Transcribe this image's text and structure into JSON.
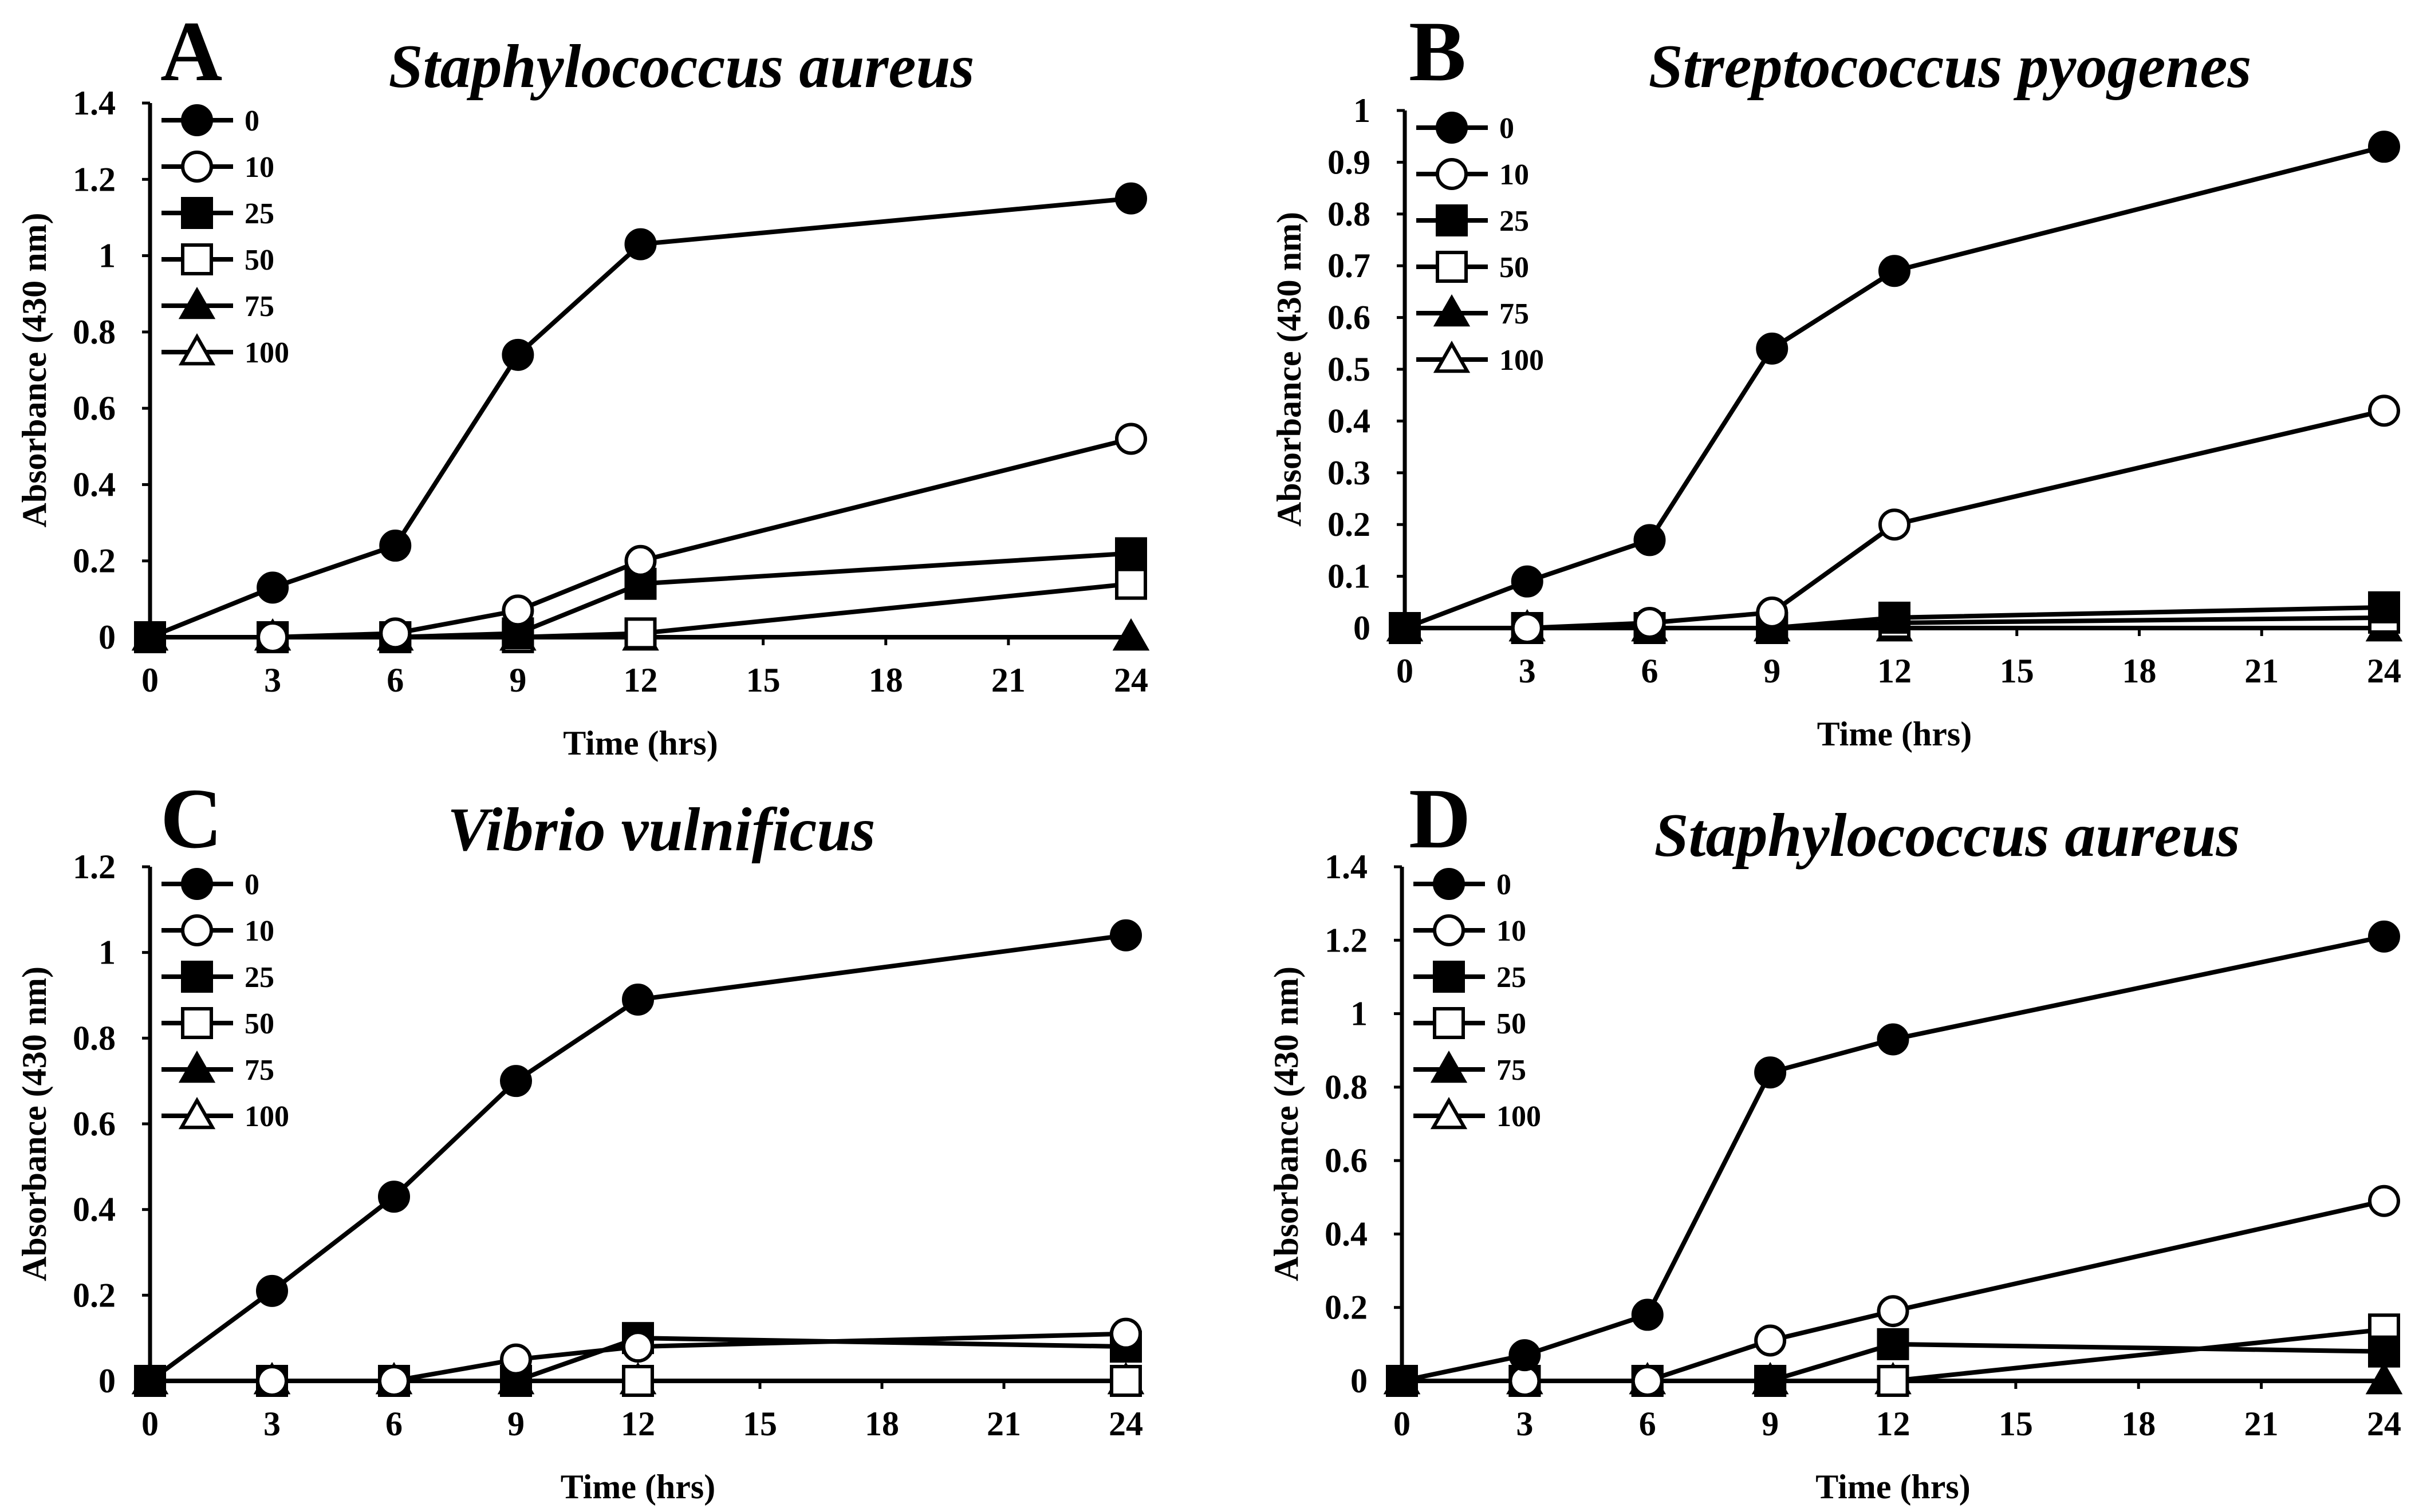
{
  "chart_data": [
    {
      "type": "line",
      "panel": "A",
      "title": "Staphylococcus aureus",
      "xlabel": "Time (hrs)",
      "ylabel": "Absorbance (430 nm)",
      "xlim": [
        0,
        24
      ],
      "ylim": [
        0,
        1.4
      ],
      "xticks": [
        0,
        3,
        6,
        9,
        12,
        15,
        18,
        21,
        24
      ],
      "yticks": [
        0,
        0.2,
        0.4,
        0.6,
        0.8,
        1,
        1.2,
        1.4
      ],
      "ytick_labels": [
        "0",
        "0.2",
        "0.4",
        "0.6",
        "0.8",
        "1",
        "1.2",
        "1.4"
      ],
      "x": [
        0,
        3,
        6,
        9,
        12,
        24
      ],
      "legend": "top-left",
      "grid": false,
      "series": [
        {
          "name": "0",
          "marker": "circle-filled",
          "values": [
            0,
            0.13,
            0.24,
            0.74,
            1.03,
            1.15
          ]
        },
        {
          "name": "10",
          "marker": "circle-open",
          "values": [
            0,
            0,
            0.01,
            0.07,
            0.2,
            0.52
          ]
        },
        {
          "name": "25",
          "marker": "square-filled",
          "values": [
            0,
            0,
            0,
            0.01,
            0.14,
            0.22
          ]
        },
        {
          "name": "50",
          "marker": "square-open",
          "values": [
            0,
            0,
            0,
            0,
            0.01,
            0.14
          ]
        },
        {
          "name": "75",
          "marker": "triangle-filled",
          "values": [
            0,
            0,
            0,
            0,
            0,
            0
          ]
        },
        {
          "name": "100",
          "marker": "triangle-open",
          "values": [
            0,
            0,
            0,
            0,
            0,
            0
          ]
        }
      ]
    },
    {
      "type": "line",
      "panel": "B",
      "title": "Streptococcus pyogenes",
      "xlabel": "Time (hrs)",
      "ylabel": "Absorbance (430 nm)",
      "xlim": [
        0,
        24
      ],
      "ylim": [
        0,
        1
      ],
      "xticks": [
        0,
        3,
        6,
        9,
        12,
        15,
        18,
        21,
        24
      ],
      "yticks": [
        0,
        0.1,
        0.2,
        0.3,
        0.4,
        0.5,
        0.6,
        0.7,
        0.8,
        0.9,
        1
      ],
      "ytick_labels": [
        "0",
        "0.1",
        "0.2",
        "0.3",
        "0.4",
        "0.5",
        "0.6",
        "0.7",
        "0.8",
        "0.9",
        "1"
      ],
      "x": [
        0,
        3,
        6,
        9,
        12,
        24
      ],
      "legend": "top-left",
      "grid": false,
      "series": [
        {
          "name": "0",
          "marker": "circle-filled",
          "values": [
            0,
            0.09,
            0.17,
            0.54,
            0.69,
            0.93
          ]
        },
        {
          "name": "10",
          "marker": "circle-open",
          "values": [
            0,
            0,
            0.01,
            0.03,
            0.2,
            0.42
          ]
        },
        {
          "name": "25",
          "marker": "square-filled",
          "values": [
            0,
            0,
            0,
            0,
            0.02,
            0.04
          ]
        },
        {
          "name": "50",
          "marker": "square-open",
          "values": [
            0,
            0,
            0,
            0,
            0.01,
            0.02
          ]
        },
        {
          "name": "75",
          "marker": "triangle-filled",
          "values": [
            0,
            0,
            0,
            0,
            0,
            0
          ]
        },
        {
          "name": "100",
          "marker": "triangle-open",
          "values": [
            0,
            0,
            0,
            0,
            0,
            0
          ]
        }
      ]
    },
    {
      "type": "line",
      "panel": "C",
      "title": "Vibrio vulnificus",
      "xlabel": "Time (hrs)",
      "ylabel": "Absorbance (430 nm)",
      "xlim": [
        0,
        24
      ],
      "ylim": [
        0,
        1.2
      ],
      "xticks": [
        0,
        3,
        6,
        9,
        12,
        15,
        18,
        21,
        24
      ],
      "yticks": [
        0,
        0.2,
        0.4,
        0.6,
        0.8,
        1,
        1.2
      ],
      "ytick_labels": [
        "0",
        "0.2",
        "0.4",
        "0.6",
        "0.8",
        "1",
        "1.2"
      ],
      "x": [
        0,
        3,
        6,
        9,
        12,
        24
      ],
      "legend": "top-left",
      "grid": false,
      "series": [
        {
          "name": "0",
          "marker": "circle-filled",
          "values": [
            0,
            0.21,
            0.43,
            0.7,
            0.89,
            1.04
          ]
        },
        {
          "name": "10",
          "marker": "circle-open",
          "values": [
            0,
            0,
            0,
            0.05,
            0.08,
            0.11
          ]
        },
        {
          "name": "25",
          "marker": "square-filled",
          "values": [
            0,
            0,
            0,
            0,
            0.1,
            0.08
          ]
        },
        {
          "name": "50",
          "marker": "square-open",
          "values": [
            0,
            0,
            0,
            0,
            0,
            0
          ]
        },
        {
          "name": "75",
          "marker": "triangle-filled",
          "values": [
            0,
            0,
            0,
            0,
            0,
            0
          ]
        },
        {
          "name": "100",
          "marker": "triangle-open",
          "values": [
            0,
            0,
            0,
            0,
            0,
            0
          ]
        }
      ]
    },
    {
      "type": "line",
      "panel": "D",
      "title": "Staphylococcus aureus",
      "xlabel": "Time (hrs)",
      "ylabel": "Absorbance (430 nm)",
      "xlim": [
        0,
        24
      ],
      "ylim": [
        0,
        1.4
      ],
      "xticks": [
        0,
        3,
        6,
        9,
        12,
        15,
        18,
        21,
        24
      ],
      "yticks": [
        0,
        0.2,
        0.4,
        0.6,
        0.8,
        1,
        1.2,
        1.4
      ],
      "ytick_labels": [
        "0",
        "0.2",
        "0.4",
        "0.6",
        "0.8",
        "1",
        "1.2",
        "1.4"
      ],
      "x": [
        0,
        3,
        6,
        9,
        12,
        24
      ],
      "legend": "top-left",
      "grid": false,
      "series": [
        {
          "name": "0",
          "marker": "circle-filled",
          "values": [
            0,
            0.07,
            0.18,
            0.84,
            0.93,
            1.21
          ]
        },
        {
          "name": "10",
          "marker": "circle-open",
          "values": [
            0,
            0,
            0,
            0.11,
            0.19,
            0.49
          ]
        },
        {
          "name": "25",
          "marker": "square-filled",
          "values": [
            0,
            0,
            0,
            0,
            0.1,
            0.08
          ]
        },
        {
          "name": "50",
          "marker": "square-open",
          "values": [
            0,
            0,
            0,
            0,
            0,
            0.14
          ]
        },
        {
          "name": "75",
          "marker": "triangle-filled",
          "values": [
            0,
            0,
            0,
            0,
            0,
            0
          ]
        },
        {
          "name": "100",
          "marker": "triangle-open",
          "values": [
            0,
            0,
            0,
            0,
            0,
            0
          ]
        }
      ]
    }
  ]
}
